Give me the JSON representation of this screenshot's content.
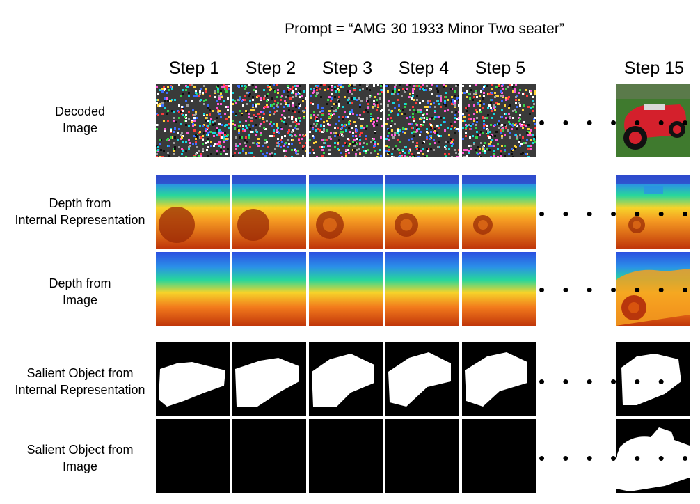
{
  "prompt": "Prompt = “AMG 30 1933 Minor Two seater”",
  "steps": [
    "Step 1",
    "Step 2",
    "Step 3",
    "Step 4",
    "Step 5",
    "Step 15"
  ],
  "rows": [
    {
      "label1": "Decoded",
      "label2": "Image",
      "kind": "noise"
    },
    {
      "label1": "Depth from",
      "label2": "Internal Representation",
      "kind": "depth-internal"
    },
    {
      "label1": "Depth from",
      "label2": "Image",
      "kind": "depth-image"
    },
    {
      "label1": "Salient Object from",
      "label2": "Internal Representation",
      "kind": "salient-internal"
    },
    {
      "label1": "Salient Object from",
      "label2": "Image",
      "kind": "salient-image"
    }
  ],
  "ellipsis": "• • • • • • •",
  "colors": {
    "depth_near": "#c0360a",
    "depth_mid": "#f6d32a",
    "depth_mid2": "#27d79b",
    "depth_far": "#2b4fe0",
    "car_red": "#d4202c",
    "lawn_green": "#3f7a2e"
  }
}
